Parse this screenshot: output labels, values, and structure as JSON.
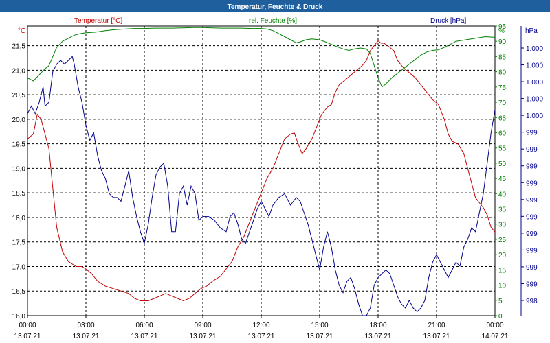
{
  "title": "Temperatur, Feuchte & Druck",
  "colors": {
    "title_bar": "#1f5f9e",
    "title_text": "#ffffff",
    "grid": "#000000",
    "temperature": "#c00000",
    "humidity": "#008000",
    "pressure": "#00008b",
    "axis_text": "#000000"
  },
  "chart_data": {
    "type": "line",
    "title": "Temperatur, Feuchte & Druck",
    "grid": true,
    "axes": {
      "left": {
        "unit_label": "°C",
        "min": 16.0,
        "max": 21.9,
        "ticks": [
          "16,0",
          "16,5",
          "17,0",
          "17,5",
          "18,0",
          "18,5",
          "19,0",
          "19,5",
          "20,0",
          "20,5",
          "21,0",
          "21,5"
        ]
      },
      "right_humidity": {
        "unit_label": "%",
        "min": 0,
        "max": 95,
        "ticks": [
          "0",
          "5",
          "10",
          "15",
          "20",
          "25",
          "30",
          "35",
          "40",
          "45",
          "50",
          "55",
          "60",
          "65",
          "70",
          "75",
          "80",
          "85",
          "90",
          "95"
        ]
      },
      "right_pressure": {
        "unit_label": "hPa",
        "min": 997.4,
        "max": 1001.2,
        "ticks": [
          "998",
          "999",
          "999",
          "999",
          "999",
          "999",
          "999",
          "999",
          "999",
          "999",
          "999",
          "1.000",
          "1.000",
          "1.000",
          "1.000",
          "1.000"
        ]
      },
      "x": {
        "min_hours": 0,
        "max_hours": 24,
        "ticks": [
          {
            "time": "00:00",
            "date": "13.07.21"
          },
          {
            "time": "03:00",
            "date": "13.07.21"
          },
          {
            "time": "06:00",
            "date": "13.07.21"
          },
          {
            "time": "09:00",
            "date": "13.07.21"
          },
          {
            "time": "12:00",
            "date": "13.07.21"
          },
          {
            "time": "15:00",
            "date": "13.07.21"
          },
          {
            "time": "18:00",
            "date": "13.07.21"
          },
          {
            "time": "21:00",
            "date": "13.07.21"
          },
          {
            "time": "00:00",
            "date": "14.07.21"
          }
        ]
      }
    },
    "series": [
      {
        "name": "Temperatur [°C]",
        "axis": "left",
        "points": [
          [
            0.0,
            19.6
          ],
          [
            0.3,
            19.7
          ],
          [
            0.5,
            20.1
          ],
          [
            0.7,
            20.0
          ],
          [
            0.9,
            19.7
          ],
          [
            1.1,
            19.4
          ],
          [
            1.3,
            18.6
          ],
          [
            1.5,
            17.8
          ],
          [
            1.8,
            17.3
          ],
          [
            2.1,
            17.1
          ],
          [
            2.5,
            17.0
          ],
          [
            2.8,
            17.0
          ],
          [
            3.0,
            16.95
          ],
          [
            3.3,
            16.85
          ],
          [
            3.6,
            16.7
          ],
          [
            4.0,
            16.6
          ],
          [
            4.4,
            16.55
          ],
          [
            4.8,
            16.5
          ],
          [
            5.2,
            16.45
          ],
          [
            5.5,
            16.35
          ],
          [
            5.8,
            16.3
          ],
          [
            6.2,
            16.3
          ],
          [
            6.5,
            16.35
          ],
          [
            6.8,
            16.4
          ],
          [
            7.1,
            16.45
          ],
          [
            7.4,
            16.4
          ],
          [
            7.7,
            16.35
          ],
          [
            8.0,
            16.3
          ],
          [
            8.3,
            16.35
          ],
          [
            8.6,
            16.45
          ],
          [
            8.9,
            16.55
          ],
          [
            9.2,
            16.6
          ],
          [
            9.5,
            16.7
          ],
          [
            9.9,
            16.8
          ],
          [
            10.2,
            16.95
          ],
          [
            10.5,
            17.1
          ],
          [
            10.8,
            17.4
          ],
          [
            11.1,
            17.6
          ],
          [
            11.4,
            17.9
          ],
          [
            11.7,
            18.2
          ],
          [
            12.0,
            18.5
          ],
          [
            12.3,
            18.8
          ],
          [
            12.6,
            19.0
          ],
          [
            12.9,
            19.3
          ],
          [
            13.2,
            19.6
          ],
          [
            13.5,
            19.7
          ],
          [
            13.7,
            19.72
          ],
          [
            13.9,
            19.5
          ],
          [
            14.1,
            19.3
          ],
          [
            14.3,
            19.4
          ],
          [
            14.6,
            19.6
          ],
          [
            14.9,
            19.9
          ],
          [
            15.1,
            20.1
          ],
          [
            15.4,
            20.25
          ],
          [
            15.6,
            20.3
          ],
          [
            15.8,
            20.55
          ],
          [
            16.0,
            20.7
          ],
          [
            16.3,
            20.8
          ],
          [
            16.6,
            20.9
          ],
          [
            16.9,
            21.0
          ],
          [
            17.2,
            21.1
          ],
          [
            17.4,
            21.2
          ],
          [
            17.6,
            21.4
          ],
          [
            17.8,
            21.5
          ],
          [
            18.0,
            21.6
          ],
          [
            18.15,
            21.55
          ],
          [
            18.3,
            21.55
          ],
          [
            18.5,
            21.5
          ],
          [
            18.8,
            21.4
          ],
          [
            19.0,
            21.2
          ],
          [
            19.3,
            21.05
          ],
          [
            19.6,
            20.95
          ],
          [
            19.9,
            20.85
          ],
          [
            20.2,
            20.7
          ],
          [
            20.5,
            20.55
          ],
          [
            20.8,
            20.4
          ],
          [
            21.1,
            20.3
          ],
          [
            21.4,
            20.0
          ],
          [
            21.6,
            19.7
          ],
          [
            21.8,
            19.55
          ],
          [
            22.1,
            19.5
          ],
          [
            22.4,
            19.3
          ],
          [
            22.6,
            19.0
          ],
          [
            22.8,
            18.7
          ],
          [
            23.0,
            18.4
          ],
          [
            23.2,
            18.3
          ],
          [
            23.4,
            18.2
          ],
          [
            23.6,
            18.05
          ],
          [
            23.8,
            17.8
          ],
          [
            24.0,
            17.7
          ]
        ]
      },
      {
        "name": "rel. Feuchte [%]",
        "axis": "right_humidity",
        "points": [
          [
            0.0,
            78
          ],
          [
            0.3,
            77
          ],
          [
            0.6,
            79
          ],
          [
            0.9,
            81
          ],
          [
            1.1,
            82
          ],
          [
            1.3,
            85
          ],
          [
            1.5,
            88
          ],
          [
            1.8,
            90
          ],
          [
            2.1,
            91
          ],
          [
            2.4,
            92
          ],
          [
            2.7,
            92.5
          ],
          [
            3.0,
            92.8
          ],
          [
            3.5,
            93.0
          ],
          [
            4.0,
            93.5
          ],
          [
            4.5,
            93.8
          ],
          [
            5.0,
            94.0
          ],
          [
            5.5,
            94.2
          ],
          [
            6.0,
            94.2
          ],
          [
            6.5,
            94.3
          ],
          [
            7.0,
            94.3
          ],
          [
            7.5,
            94.3
          ],
          [
            8.0,
            94.4
          ],
          [
            8.5,
            94.5
          ],
          [
            9.0,
            94.5
          ],
          [
            9.5,
            94.4
          ],
          [
            10.0,
            94.3
          ],
          [
            10.5,
            94.3
          ],
          [
            11.0,
            94.3
          ],
          [
            11.5,
            94.2
          ],
          [
            12.0,
            94.2
          ],
          [
            12.3,
            94.0
          ],
          [
            12.6,
            93.5
          ],
          [
            12.9,
            92.5
          ],
          [
            13.2,
            91.5
          ],
          [
            13.5,
            90.5
          ],
          [
            13.8,
            89.5
          ],
          [
            14.0,
            89.8
          ],
          [
            14.3,
            90.5
          ],
          [
            14.6,
            90.8
          ],
          [
            15.0,
            90.5
          ],
          [
            15.3,
            89.8
          ],
          [
            15.6,
            89.0
          ],
          [
            15.9,
            88.2
          ],
          [
            16.2,
            87.5
          ],
          [
            16.5,
            87.0
          ],
          [
            16.8,
            87.5
          ],
          [
            17.1,
            87.8
          ],
          [
            17.4,
            87.5
          ],
          [
            17.6,
            86.0
          ],
          [
            17.8,
            82.0
          ],
          [
            18.0,
            78.0
          ],
          [
            18.2,
            75.0
          ],
          [
            18.4,
            76.0
          ],
          [
            18.7,
            78.0
          ],
          [
            19.0,
            79.5
          ],
          [
            19.3,
            81.0
          ],
          [
            19.6,
            82.5
          ],
          [
            19.9,
            84.0
          ],
          [
            20.2,
            85.5
          ],
          [
            20.5,
            86.5
          ],
          [
            20.8,
            87.0
          ],
          [
            21.1,
            87.2
          ],
          [
            21.4,
            88.0
          ],
          [
            21.7,
            89.0
          ],
          [
            22.0,
            90.0
          ],
          [
            22.5,
            90.5
          ],
          [
            23.0,
            91.0
          ],
          [
            23.5,
            91.5
          ],
          [
            24.0,
            91.3
          ]
        ]
      },
      {
        "name": "Druck [hPa]",
        "axis": "right_pressure",
        "points": [
          [
            0.0,
            1000.05
          ],
          [
            0.2,
            1000.15
          ],
          [
            0.4,
            1000.05
          ],
          [
            0.6,
            1000.2
          ],
          [
            0.8,
            1000.4
          ],
          [
            0.9,
            1000.15
          ],
          [
            1.1,
            1000.2
          ],
          [
            1.3,
            1000.6
          ],
          [
            1.5,
            1000.7
          ],
          [
            1.7,
            1000.75
          ],
          [
            1.9,
            1000.7
          ],
          [
            2.1,
            1000.75
          ],
          [
            2.3,
            1000.8
          ],
          [
            2.4,
            1000.7
          ],
          [
            2.6,
            1000.4
          ],
          [
            2.8,
            1000.2
          ],
          [
            3.0,
            999.9
          ],
          [
            3.2,
            999.7
          ],
          [
            3.4,
            999.8
          ],
          [
            3.6,
            999.5
          ],
          [
            3.8,
            999.3
          ],
          [
            4.0,
            999.2
          ],
          [
            4.2,
            999.0
          ],
          [
            4.4,
            998.95
          ],
          [
            4.6,
            998.95
          ],
          [
            4.8,
            998.9
          ],
          [
            5.0,
            999.1
          ],
          [
            5.2,
            999.3
          ],
          [
            5.4,
            998.95
          ],
          [
            5.6,
            998.7
          ],
          [
            5.8,
            998.5
          ],
          [
            6.0,
            998.35
          ],
          [
            6.2,
            998.6
          ],
          [
            6.4,
            998.95
          ],
          [
            6.6,
            999.25
          ],
          [
            6.8,
            999.35
          ],
          [
            7.0,
            999.4
          ],
          [
            7.2,
            999.1
          ],
          [
            7.4,
            998.5
          ],
          [
            7.6,
            998.5
          ],
          [
            7.8,
            999.0
          ],
          [
            8.0,
            999.1
          ],
          [
            8.2,
            998.85
          ],
          [
            8.4,
            999.1
          ],
          [
            8.6,
            999.0
          ],
          [
            8.8,
            998.65
          ],
          [
            9.0,
            998.7
          ],
          [
            9.3,
            998.7
          ],
          [
            9.6,
            998.65
          ],
          [
            9.9,
            998.55
          ],
          [
            10.2,
            998.5
          ],
          [
            10.4,
            998.7
          ],
          [
            10.6,
            998.75
          ],
          [
            10.8,
            998.6
          ],
          [
            11.0,
            998.4
          ],
          [
            11.2,
            998.35
          ],
          [
            11.4,
            998.5
          ],
          [
            11.6,
            998.65
          ],
          [
            11.8,
            998.8
          ],
          [
            12.0,
            998.9
          ],
          [
            12.2,
            998.8
          ],
          [
            12.4,
            998.7
          ],
          [
            12.6,
            998.85
          ],
          [
            12.9,
            998.95
          ],
          [
            13.2,
            999.0
          ],
          [
            13.5,
            998.85
          ],
          [
            13.8,
            998.95
          ],
          [
            14.0,
            998.9
          ],
          [
            14.2,
            998.75
          ],
          [
            14.4,
            998.6
          ],
          [
            14.6,
            998.4
          ],
          [
            14.8,
            998.2
          ],
          [
            15.0,
            998.0
          ],
          [
            15.2,
            998.3
          ],
          [
            15.4,
            998.5
          ],
          [
            15.6,
            998.3
          ],
          [
            15.8,
            998.0
          ],
          [
            16.0,
            997.8
          ],
          [
            16.2,
            997.7
          ],
          [
            16.4,
            997.85
          ],
          [
            16.6,
            997.9
          ],
          [
            16.8,
            997.75
          ],
          [
            17.0,
            997.55
          ],
          [
            17.2,
            997.3
          ],
          [
            17.4,
            997.0
          ],
          [
            17.6,
            997.5
          ],
          [
            17.8,
            997.8
          ],
          [
            18.0,
            997.9
          ],
          [
            18.2,
            997.95
          ],
          [
            18.4,
            998.0
          ],
          [
            18.6,
            997.95
          ],
          [
            18.8,
            997.8
          ],
          [
            19.0,
            997.65
          ],
          [
            19.2,
            997.55
          ],
          [
            19.4,
            997.5
          ],
          [
            19.6,
            997.6
          ],
          [
            19.8,
            997.5
          ],
          [
            20.0,
            997.45
          ],
          [
            20.2,
            997.5
          ],
          [
            20.4,
            997.6
          ],
          [
            20.6,
            997.9
          ],
          [
            20.8,
            998.1
          ],
          [
            21.0,
            998.2
          ],
          [
            21.2,
            998.1
          ],
          [
            21.4,
            998.0
          ],
          [
            21.6,
            997.9
          ],
          [
            21.8,
            998.0
          ],
          [
            22.0,
            998.1
          ],
          [
            22.2,
            998.05
          ],
          [
            22.4,
            998.3
          ],
          [
            22.6,
            998.4
          ],
          [
            22.8,
            998.55
          ],
          [
            23.0,
            998.5
          ],
          [
            23.2,
            998.75
          ],
          [
            23.4,
            999.0
          ],
          [
            23.6,
            999.4
          ],
          [
            23.8,
            999.8
          ],
          [
            24.0,
            1000.1
          ]
        ]
      }
    ]
  }
}
